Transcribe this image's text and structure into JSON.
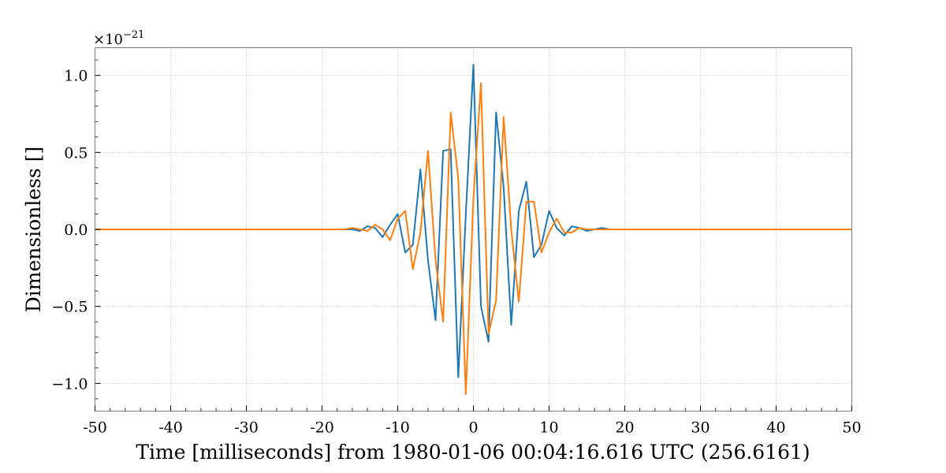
{
  "chart_data": {
    "type": "line",
    "xlabel": "Time [milliseconds] from 1980-01-06 00:04:16.616 UTC (256.6161)",
    "ylabel": "Dimensionless []",
    "y_multiplier_label": "×10",
    "y_multiplier_exponent": "−21",
    "xlim": [
      -50,
      50
    ],
    "ylim": [
      -1.18,
      1.18
    ],
    "x_ticks": [
      -50,
      -40,
      -30,
      -20,
      -10,
      0,
      10,
      20,
      30,
      40,
      50
    ],
    "x_tick_labels": [
      "-50",
      "-40",
      "-30",
      "-20",
      "-10",
      "0",
      "10",
      "20",
      "30",
      "40",
      "50"
    ],
    "x_minor_step": 2,
    "y_ticks": [
      -1.0,
      -0.5,
      0.0,
      0.5,
      1.0
    ],
    "y_tick_labels": [
      "−1.0",
      "−0.5",
      "0.0",
      "0.5",
      "1.0"
    ],
    "y_minor_step": 0.1,
    "grid": true,
    "series": [
      {
        "color": "#1f77b4",
        "x": [
          -50,
          -17,
          -16,
          -15,
          -14,
          -13,
          -12,
          -11,
          -10,
          -9,
          -8,
          -7,
          -6,
          -5,
          -4,
          -3,
          -2,
          -1,
          0,
          1,
          2,
          3,
          4,
          5,
          6,
          7,
          8,
          9,
          10,
          11,
          12,
          13,
          14,
          15,
          16,
          17,
          18,
          50
        ],
        "y": [
          0.0,
          0.0,
          0.0,
          -0.01,
          0.02,
          0.01,
          -0.05,
          0.03,
          0.1,
          -0.15,
          -0.1,
          0.39,
          -0.2,
          -0.59,
          0.51,
          0.52,
          -0.96,
          0.1,
          1.07,
          -0.5,
          -0.73,
          0.76,
          0.27,
          -0.62,
          0.12,
          0.31,
          -0.18,
          -0.1,
          0.12,
          0.01,
          -0.04,
          0.02,
          0.01,
          -0.01,
          0.0,
          0.01,
          0.0,
          0.0
        ]
      },
      {
        "color": "#ff7f0e",
        "x": [
          -50,
          -17,
          -16,
          -15,
          -14,
          -13,
          -12,
          -11,
          -10,
          -9,
          -8,
          -7,
          -6,
          -5,
          -4,
          -3,
          -2,
          -1,
          0,
          1,
          2,
          3,
          4,
          5,
          6,
          7,
          8,
          9,
          10,
          11,
          12,
          13,
          14,
          15,
          16,
          17,
          18,
          50
        ],
        "y": [
          0.0,
          0.0,
          0.01,
          0.0,
          -0.01,
          0.03,
          0.0,
          -0.07,
          0.07,
          0.12,
          -0.26,
          -0.02,
          0.51,
          -0.2,
          -0.6,
          0.76,
          0.33,
          -1.07,
          0.2,
          0.95,
          -0.68,
          -0.46,
          0.73,
          0.0,
          -0.47,
          0.18,
          0.18,
          -0.15,
          -0.02,
          0.07,
          -0.02,
          -0.02,
          0.01,
          0.0,
          0.0,
          0.0,
          0.0,
          0.0
        ]
      }
    ]
  }
}
